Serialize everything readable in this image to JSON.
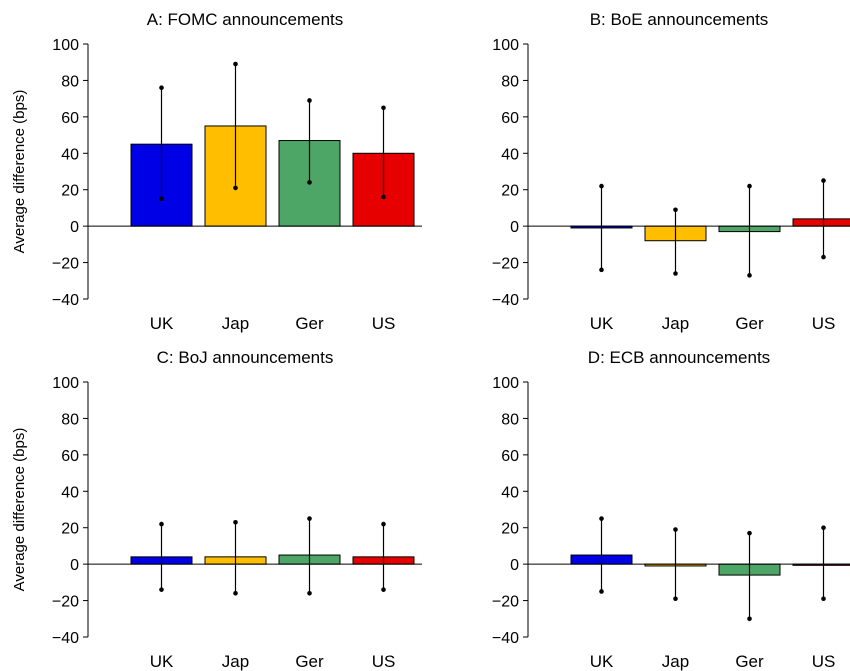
{
  "chart_data": [
    {
      "type": "bar",
      "title": "A: FOMC announcements",
      "ylabel": "Average difference (bps)",
      "categories": [
        "UK",
        "Jap",
        "Ger",
        "US"
      ],
      "values": [
        45,
        55,
        47,
        40
      ],
      "error_low": [
        15,
        21,
        24,
        16
      ],
      "error_high": [
        76,
        89,
        69,
        65
      ],
      "ylim": [
        -40,
        100
      ],
      "yticks": [
        100,
        80,
        60,
        40,
        20,
        0,
        -20,
        -40
      ]
    },
    {
      "type": "bar",
      "title": "B: BoE announcements",
      "ylabel": "",
      "categories": [
        "UK",
        "Jap",
        "Ger",
        "US"
      ],
      "values": [
        -1,
        -8,
        -3,
        4
      ],
      "error_low": [
        -24,
        -26,
        -27,
        -17
      ],
      "error_high": [
        22,
        9,
        22,
        25
      ],
      "ylim": [
        -40,
        100
      ],
      "yticks": [
        100,
        80,
        60,
        40,
        20,
        0,
        -20,
        -40
      ]
    },
    {
      "type": "bar",
      "title": "C: BoJ announcements",
      "ylabel": "Average difference (bps)",
      "categories": [
        "UK",
        "Jap",
        "Ger",
        "US"
      ],
      "values": [
        4,
        4,
        5,
        4
      ],
      "error_low": [
        -14,
        -16,
        -16,
        -14
      ],
      "error_high": [
        22,
        23,
        25,
        22
      ],
      "ylim": [
        -40,
        100
      ],
      "yticks": [
        100,
        80,
        60,
        40,
        20,
        0,
        -20,
        -40
      ]
    },
    {
      "type": "bar",
      "title": "D: ECB announcements",
      "ylabel": "",
      "categories": [
        "UK",
        "Jap",
        "Ger",
        "US"
      ],
      "values": [
        5,
        -1,
        -6,
        0
      ],
      "error_low": [
        -15,
        -19,
        -30,
        -19
      ],
      "error_high": [
        25,
        19,
        17,
        20
      ],
      "ylim": [
        -40,
        100
      ],
      "yticks": [
        100,
        80,
        60,
        40,
        20,
        0,
        -20,
        -40
      ]
    }
  ],
  "colors": {
    "UK": "#0000e6",
    "Jap": "#ffbf00",
    "Ger": "#4da666",
    "US": "#e60000"
  }
}
